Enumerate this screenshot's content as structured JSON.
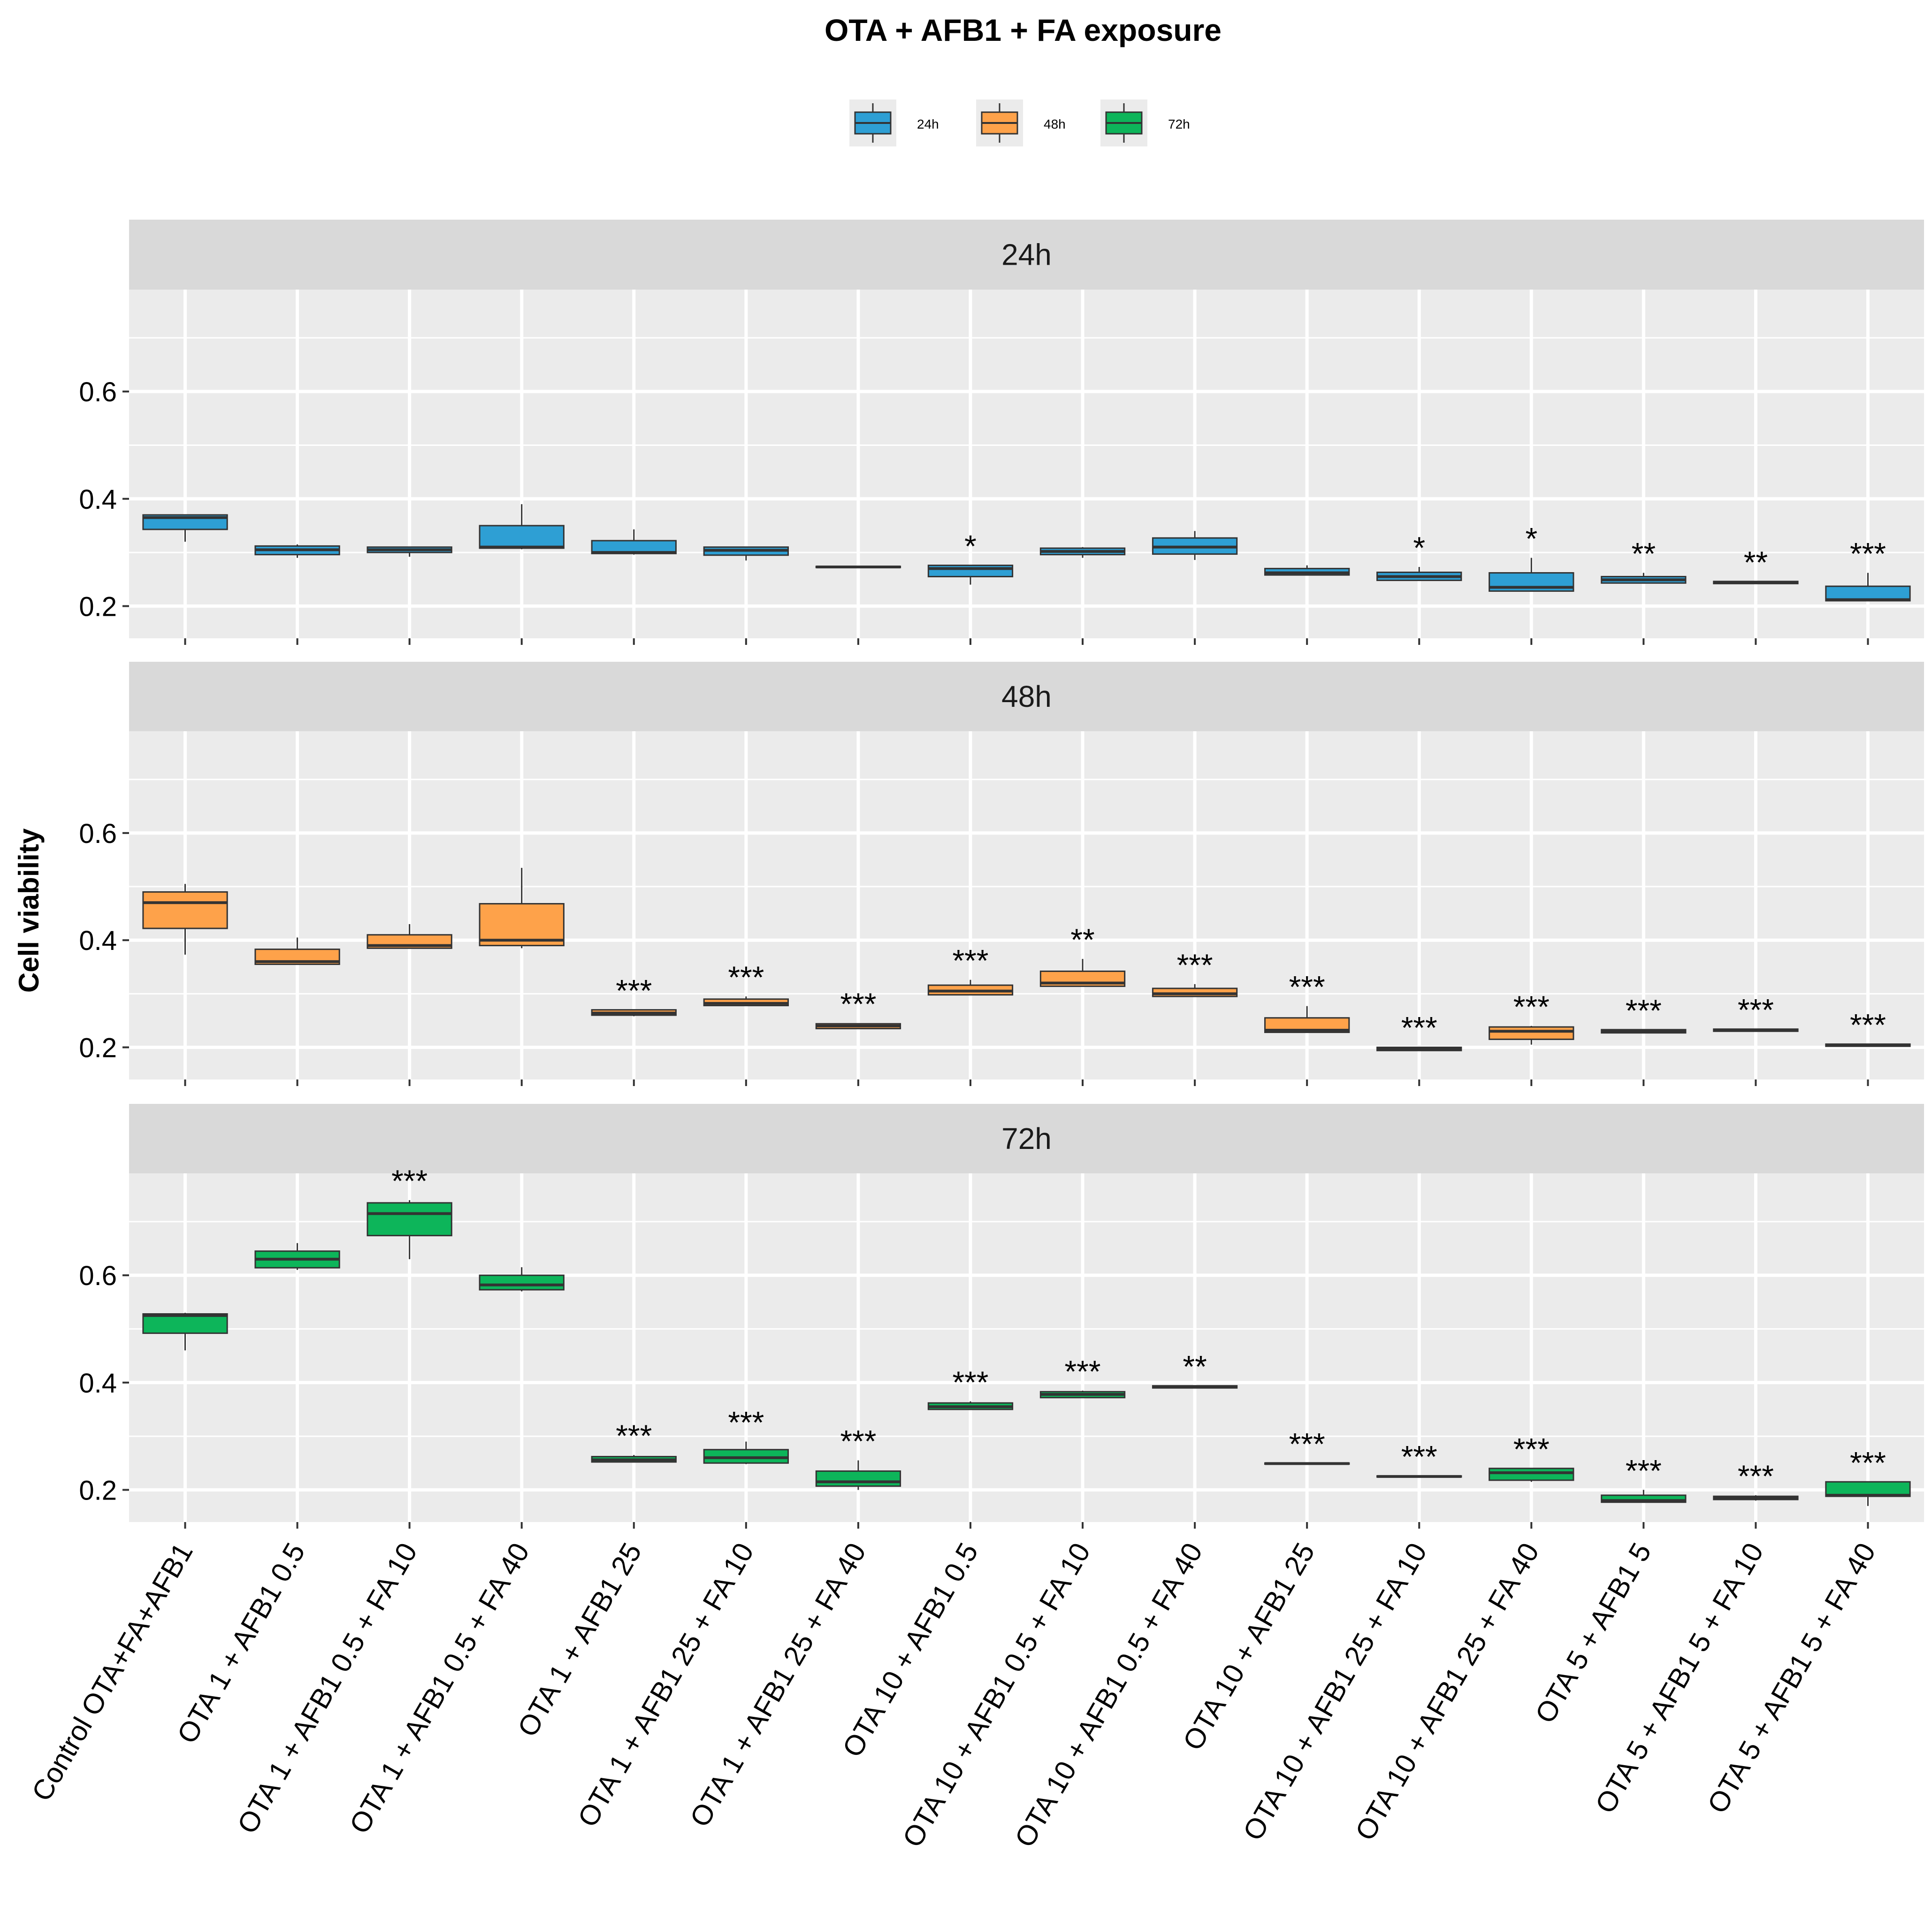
{
  "chart_data": {
    "type": "boxplot",
    "title": "OTA + AFB1 + FA exposure",
    "ylabel": "Cell viability",
    "xlabel": "",
    "ylim": [
      0.14,
      0.79
    ],
    "yticks": [
      0.2,
      0.4,
      0.6
    ],
    "ytick_labels": [
      "0.2",
      "0.4",
      "0.6"
    ],
    "grid": true,
    "legend_position": "top",
    "categories": [
      "Control OTA+FA+AFB1",
      "OTA 1 + AFB1 0.5",
      "OTA 1 + AFB1 0.5 + FA 10",
      "OTA 1 + AFB1 0.5 + FA 40",
      "OTA 1 + AFB1 25",
      "OTA 1 + AFB1 25 + FA 10",
      "OTA 1 + AFB1 25 + FA 40",
      "OTA 10 + AFB1 0.5",
      "OTA 10 + AFB1 0.5 + FA 10",
      "OTA 10 + AFB1 0.5 + FA 40",
      "OTA 10 + AFB1 25",
      "OTA 10 + AFB1 25 + FA 10",
      "OTA 10 + AFB1 25 + FA 40",
      "OTA 5 + AFB1 5",
      "OTA 5 + AFB1 5 + FA 10",
      "OTA 5 + AFB1 5 + FA 40"
    ],
    "series": [
      {
        "name": "24h",
        "color": "#2E9FD4",
        "boxes": [
          {
            "min": 0.32,
            "q1": 0.343,
            "median": 0.365,
            "q3": 0.37,
            "max": 0.37
          },
          {
            "min": 0.29,
            "q1": 0.296,
            "median": 0.305,
            "q3": 0.312,
            "max": 0.315
          },
          {
            "min": 0.292,
            "q1": 0.3,
            "median": 0.305,
            "q3": 0.31,
            "max": 0.31
          },
          {
            "min": 0.306,
            "q1": 0.308,
            "median": 0.31,
            "q3": 0.35,
            "max": 0.39
          },
          {
            "min": 0.296,
            "q1": 0.298,
            "median": 0.3,
            "q3": 0.322,
            "max": 0.343
          },
          {
            "min": 0.285,
            "q1": 0.295,
            "median": 0.304,
            "q3": 0.31,
            "max": 0.31
          },
          {
            "min": 0.272,
            "q1": 0.272,
            "median": 0.273,
            "q3": 0.274,
            "max": 0.274
          },
          {
            "min": 0.24,
            "q1": 0.255,
            "median": 0.27,
            "q3": 0.276,
            "max": 0.276
          },
          {
            "min": 0.29,
            "q1": 0.296,
            "median": 0.302,
            "q3": 0.308,
            "max": 0.31
          },
          {
            "min": 0.286,
            "q1": 0.297,
            "median": 0.31,
            "q3": 0.327,
            "max": 0.34
          },
          {
            "min": 0.258,
            "q1": 0.258,
            "median": 0.262,
            "q3": 0.27,
            "max": 0.276
          },
          {
            "min": 0.248,
            "q1": 0.248,
            "median": 0.255,
            "q3": 0.263,
            "max": 0.273
          },
          {
            "min": 0.228,
            "q1": 0.228,
            "median": 0.235,
            "q3": 0.262,
            "max": 0.29
          },
          {
            "min": 0.243,
            "q1": 0.243,
            "median": 0.249,
            "q3": 0.255,
            "max": 0.262
          },
          {
            "min": 0.242,
            "q1": 0.242,
            "median": 0.244,
            "q3": 0.246,
            "max": 0.246
          },
          {
            "min": 0.21,
            "q1": 0.21,
            "median": 0.212,
            "q3": 0.237,
            "max": 0.262
          }
        ],
        "significance": [
          "",
          "",
          "",
          "",
          "",
          "",
          "",
          "*",
          "",
          "",
          "",
          "*",
          "*",
          "**",
          "**",
          "***"
        ]
      },
      {
        "name": "48h",
        "color": "#FEA24A",
        "boxes": [
          {
            "min": 0.373,
            "q1": 0.422,
            "median": 0.47,
            "q3": 0.49,
            "max": 0.505
          },
          {
            "min": 0.355,
            "q1": 0.355,
            "median": 0.36,
            "q3": 0.383,
            "max": 0.405
          },
          {
            "min": 0.385,
            "q1": 0.385,
            "median": 0.39,
            "q3": 0.41,
            "max": 0.43
          },
          {
            "min": 0.385,
            "q1": 0.39,
            "median": 0.4,
            "q3": 0.468,
            "max": 0.535
          },
          {
            "min": 0.258,
            "q1": 0.26,
            "median": 0.264,
            "q3": 0.27,
            "max": 0.27
          },
          {
            "min": 0.278,
            "q1": 0.278,
            "median": 0.282,
            "q3": 0.29,
            "max": 0.295
          },
          {
            "min": 0.235,
            "q1": 0.235,
            "median": 0.24,
            "q3": 0.244,
            "max": 0.245
          },
          {
            "min": 0.298,
            "q1": 0.298,
            "median": 0.305,
            "q3": 0.316,
            "max": 0.326
          },
          {
            "min": 0.314,
            "q1": 0.314,
            "median": 0.32,
            "q3": 0.342,
            "max": 0.365
          },
          {
            "min": 0.295,
            "q1": 0.295,
            "median": 0.3,
            "q3": 0.31,
            "max": 0.318
          },
          {
            "min": 0.228,
            "q1": 0.228,
            "median": 0.232,
            "q3": 0.255,
            "max": 0.277
          },
          {
            "min": 0.194,
            "q1": 0.194,
            "median": 0.197,
            "q3": 0.2,
            "max": 0.201
          },
          {
            "min": 0.205,
            "q1": 0.215,
            "median": 0.23,
            "q3": 0.238,
            "max": 0.24
          },
          {
            "min": 0.227,
            "q1": 0.227,
            "median": 0.23,
            "q3": 0.233,
            "max": 0.233
          },
          {
            "min": 0.23,
            "q1": 0.23,
            "median": 0.232,
            "q3": 0.234,
            "max": 0.234
          },
          {
            "min": 0.202,
            "q1": 0.202,
            "median": 0.204,
            "q3": 0.206,
            "max": 0.206
          }
        ],
        "significance": [
          "",
          "",
          "",
          "",
          "***",
          "***",
          "***",
          "***",
          "**",
          "***",
          "***",
          "***",
          "***",
          "***",
          "***",
          "***"
        ]
      },
      {
        "name": "72h",
        "color": "#0DB55A",
        "boxes": [
          {
            "min": 0.46,
            "q1": 0.492,
            "median": 0.525,
            "q3": 0.528,
            "max": 0.53
          },
          {
            "min": 0.61,
            "q1": 0.614,
            "median": 0.63,
            "q3": 0.645,
            "max": 0.66
          },
          {
            "min": 0.63,
            "q1": 0.674,
            "median": 0.715,
            "q3": 0.735,
            "max": 0.74
          },
          {
            "min": 0.57,
            "q1": 0.573,
            "median": 0.582,
            "q3": 0.6,
            "max": 0.615
          },
          {
            "min": 0.252,
            "q1": 0.252,
            "median": 0.256,
            "q3": 0.262,
            "max": 0.265
          },
          {
            "min": 0.248,
            "q1": 0.25,
            "median": 0.26,
            "q3": 0.275,
            "max": 0.29
          },
          {
            "min": 0.2,
            "q1": 0.207,
            "median": 0.215,
            "q3": 0.235,
            "max": 0.255
          },
          {
            "min": 0.35,
            "q1": 0.35,
            "median": 0.355,
            "q3": 0.362,
            "max": 0.365
          },
          {
            "min": 0.372,
            "q1": 0.372,
            "median": 0.378,
            "q3": 0.383,
            "max": 0.385
          },
          {
            "min": 0.39,
            "q1": 0.39,
            "median": 0.392,
            "q3": 0.394,
            "max": 0.394
          },
          {
            "min": 0.248,
            "q1": 0.248,
            "median": 0.249,
            "q3": 0.25,
            "max": 0.25
          },
          {
            "min": 0.224,
            "q1": 0.224,
            "median": 0.225,
            "q3": 0.226,
            "max": 0.226
          },
          {
            "min": 0.215,
            "q1": 0.218,
            "median": 0.232,
            "q3": 0.24,
            "max": 0.24
          },
          {
            "min": 0.177,
            "q1": 0.177,
            "median": 0.18,
            "q3": 0.19,
            "max": 0.2
          },
          {
            "min": 0.18,
            "q1": 0.182,
            "median": 0.185,
            "q3": 0.188,
            "max": 0.19
          },
          {
            "min": 0.17,
            "q1": 0.188,
            "median": 0.19,
            "q3": 0.215,
            "max": 0.215
          }
        ],
        "significance": [
          "",
          "",
          "***",
          "",
          "***",
          "***",
          "***",
          "***",
          "***",
          "**",
          "***",
          "***",
          "***",
          "***",
          "***",
          "***"
        ]
      }
    ]
  }
}
